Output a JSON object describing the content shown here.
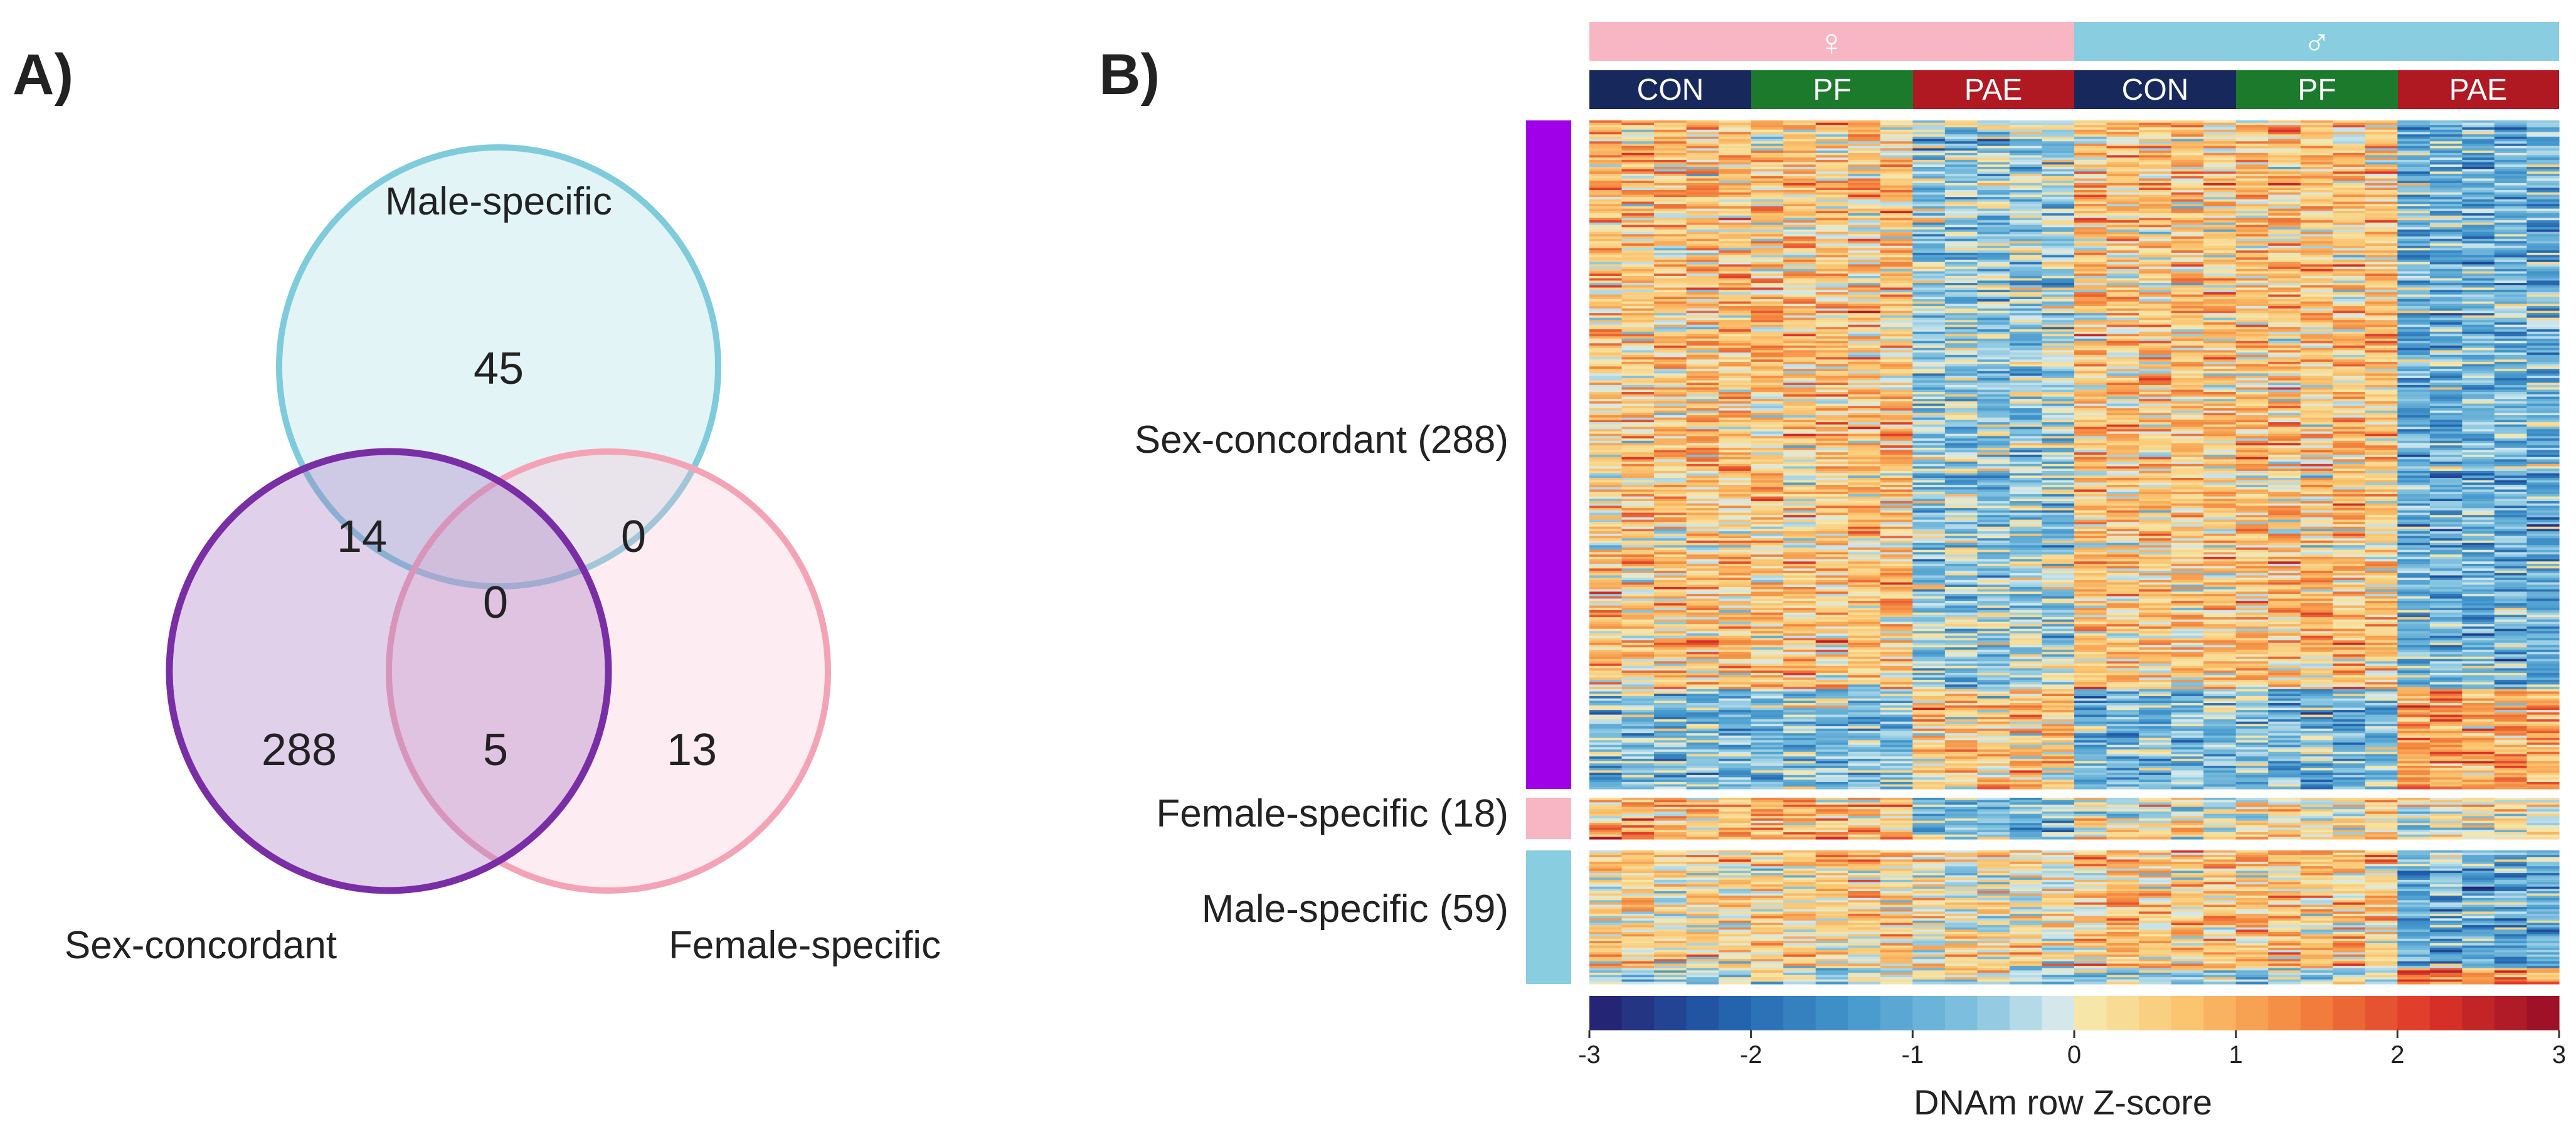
{
  "panel_a": {
    "label": "A)",
    "sets": [
      {
        "name": "Male-specific",
        "color": "#7ecbdc",
        "fill": "#7ecbdc"
      },
      {
        "name": "Sex-concordant",
        "color": "#7a2ea6",
        "fill": "#a779c4"
      },
      {
        "name": "Female-specific",
        "color": "#f4a3b7",
        "fill": "#f7bccb"
      }
    ],
    "regions": {
      "male_only": "45",
      "male_concordant": "14",
      "male_female": "0",
      "all_three": "0",
      "concordant_only": "288",
      "concordant_female": "5",
      "female_only": "13"
    }
  },
  "panel_b": {
    "label": "B)",
    "sexes": [
      {
        "symbol": "♀",
        "color": "#f8b6c4"
      },
      {
        "symbol": "♂",
        "color": "#89cde0"
      }
    ],
    "groups": [
      {
        "name": "CON",
        "color": "#17285c"
      },
      {
        "name": "PF",
        "color": "#1c7a2c"
      },
      {
        "name": "PAE",
        "color": "#b01822"
      },
      {
        "name": "CON",
        "color": "#17285c"
      },
      {
        "name": "PF",
        "color": "#1c7a2c"
      },
      {
        "name": "PAE",
        "color": "#b01822"
      }
    ],
    "clusters": [
      {
        "label": "Sex-concordant (288)",
        "color": "#a000e8"
      },
      {
        "label": "Female-specific (18)",
        "color": "#f8b6c4"
      },
      {
        "label": "Male-specific (59)",
        "color": "#89cde0"
      }
    ],
    "colorbar_title": "DNAm row Z-score",
    "colorbar_ticks": [
      "-3",
      "-2",
      "-1",
      "0",
      "1",
      "2",
      "3"
    ]
  },
  "chart_data": [
    {
      "type": "venn",
      "title": "",
      "sets": [
        "Male-specific",
        "Sex-concordant",
        "Female-specific"
      ],
      "regions": [
        {
          "sets": [
            "Male-specific"
          ],
          "value": 45
        },
        {
          "sets": [
            "Male-specific",
            "Sex-concordant"
          ],
          "value": 14
        },
        {
          "sets": [
            "Male-specific",
            "Female-specific"
          ],
          "value": 0
        },
        {
          "sets": [
            "Male-specific",
            "Sex-concordant",
            "Female-specific"
          ],
          "value": 0
        },
        {
          "sets": [
            "Sex-concordant"
          ],
          "value": 288
        },
        {
          "sets": [
            "Sex-concordant",
            "Female-specific"
          ],
          "value": 5
        },
        {
          "sets": [
            "Female-specific"
          ],
          "value": 13
        }
      ]
    },
    {
      "type": "heatmap",
      "title": "",
      "column_annotation": {
        "sex": [
          "♀",
          "♂"
        ],
        "groups_per_sex": [
          "CON",
          "PF",
          "PAE"
        ]
      },
      "row_clusters": [
        {
          "name": "Sex-concordant",
          "count": 288
        },
        {
          "name": "Female-specific",
          "count": 18
        },
        {
          "name": "Male-specific",
          "count": 59
        }
      ],
      "colorbar": {
        "label": "DNAm row Z-score",
        "range": [
          -3,
          3
        ],
        "ticks": [
          -3,
          -2,
          -1,
          0,
          1,
          2,
          3
        ]
      },
      "pattern_levels": [
        {
          "cluster": "Sex-concordant",
          "group_means": [
            0.6,
            0.6,
            -0.5,
            0.6,
            0.6,
            -0.9
          ]
        },
        {
          "cluster": "Female-specific",
          "group_means": [
            0.8,
            0.8,
            -0.7,
            0.2,
            0.3,
            0.1
          ]
        },
        {
          "cluster": "Male-specific",
          "group_means": [
            0.4,
            0.4,
            0.2,
            0.6,
            0.6,
            -1.0
          ]
        }
      ]
    }
  ]
}
